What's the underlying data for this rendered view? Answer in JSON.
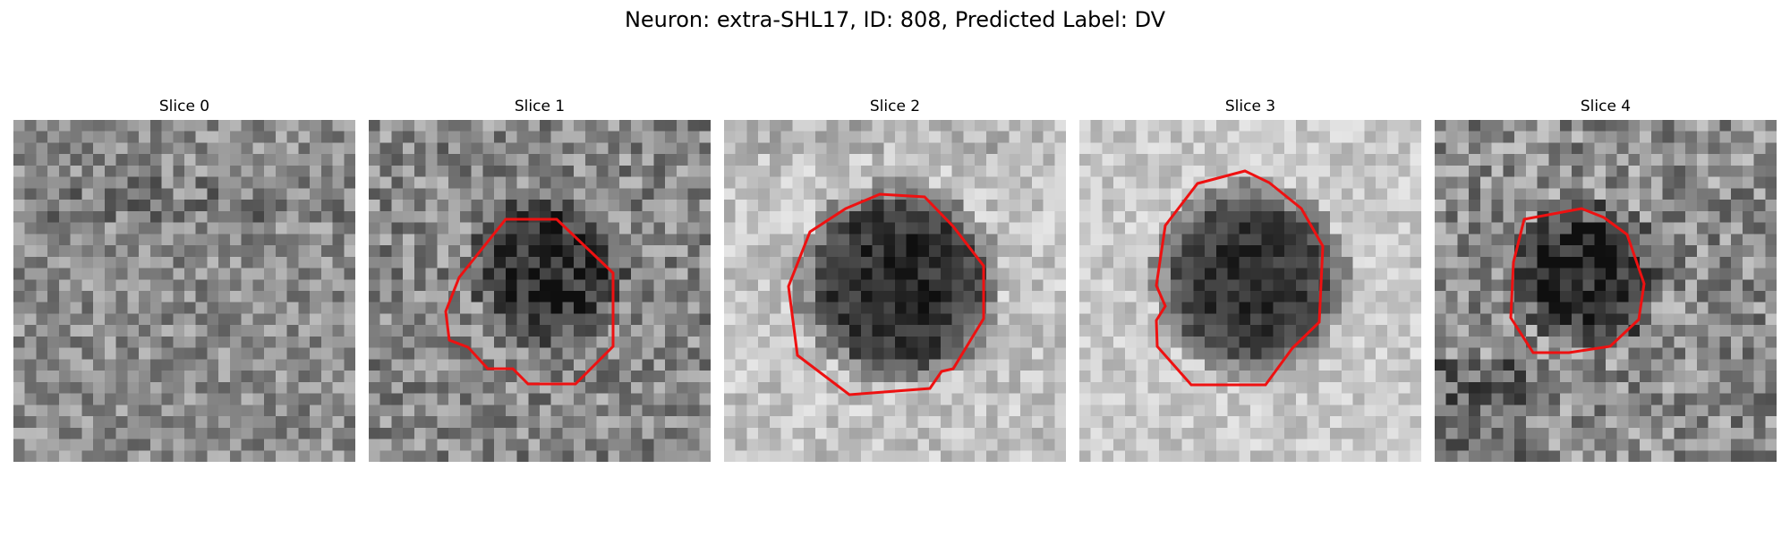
{
  "figure": {
    "title": "Neuron: extra-SHL17, ID: 808, Predicted Label: DV"
  },
  "contour_color": "#ee1111",
  "slices": [
    {
      "title": "Slice 0",
      "contour": false
    },
    {
      "title": "Slice 1",
      "contour": true
    },
    {
      "title": "Slice 2",
      "contour": true
    },
    {
      "title": "Slice 3",
      "contour": true
    },
    {
      "title": "Slice 4",
      "contour": true
    }
  ]
}
